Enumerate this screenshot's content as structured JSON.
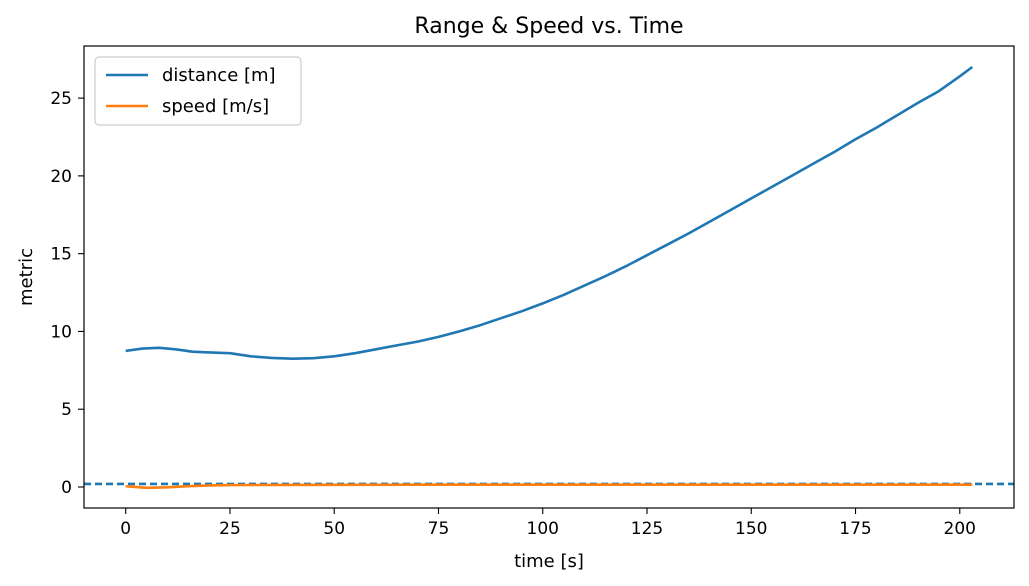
{
  "chart_data": {
    "type": "line",
    "title": "Range & Speed vs. Time",
    "xlabel": "time [s]",
    "ylabel": "metric",
    "xlim": [
      -10,
      213
    ],
    "ylim": [
      -1.35,
      28.35
    ],
    "xticks": [
      0,
      25,
      50,
      75,
      100,
      125,
      150,
      175,
      200
    ],
    "yticks": [
      0,
      5,
      10,
      15,
      20,
      25
    ],
    "grid": false,
    "legend_position": "top-left",
    "series": [
      {
        "name": "distance [m]",
        "color": "#1f77b4",
        "x": [
          0,
          4,
          8,
          12,
          16,
          20,
          25,
          30,
          35,
          40,
          45,
          50,
          55,
          60,
          65,
          70,
          75,
          80,
          85,
          90,
          95,
          100,
          105,
          110,
          115,
          120,
          125,
          130,
          135,
          140,
          145,
          150,
          155,
          160,
          165,
          170,
          175,
          180,
          185,
          190,
          195,
          200,
          203
        ],
        "y": [
          8.75,
          8.9,
          8.95,
          8.85,
          8.7,
          8.65,
          8.6,
          8.4,
          8.3,
          8.25,
          8.28,
          8.4,
          8.6,
          8.85,
          9.1,
          9.35,
          9.65,
          10.0,
          10.4,
          10.85,
          11.3,
          11.8,
          12.35,
          12.95,
          13.55,
          14.2,
          14.9,
          15.6,
          16.3,
          17.05,
          17.8,
          18.55,
          19.3,
          20.05,
          20.8,
          21.55,
          22.35,
          23.1,
          23.9,
          24.7,
          25.45,
          26.4,
          27.0
        ]
      },
      {
        "name": "speed [m/s]",
        "color": "#ff7f0e",
        "x": [
          0,
          5,
          10,
          15,
          20,
          25,
          30,
          50,
          75,
          100,
          125,
          150,
          175,
          200,
          203
        ],
        "y": [
          0.05,
          -0.05,
          -0.02,
          0.05,
          0.1,
          0.12,
          0.13,
          0.14,
          0.15,
          0.15,
          0.15,
          0.15,
          0.15,
          0.15,
          0.15
        ]
      }
    ],
    "reference_lines": [
      {
        "orientation": "horizontal",
        "y": 0.2,
        "style": "dashed",
        "color": "#1f77b4"
      }
    ]
  }
}
